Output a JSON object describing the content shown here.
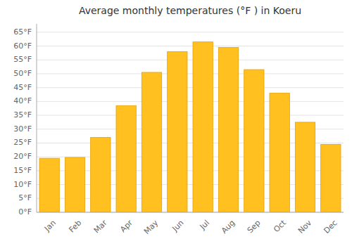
{
  "chart_data": {
    "type": "bar",
    "title": "Average monthly temperatures (°F ) in Koeru",
    "categories": [
      "Jan",
      "Feb",
      "Mar",
      "Apr",
      "May",
      "Jun",
      "Jul",
      "Aug",
      "Sep",
      "Oct",
      "Nov",
      "Dec"
    ],
    "values": [
      19.5,
      19.8,
      27.0,
      38.5,
      50.5,
      58.0,
      61.5,
      59.5,
      51.5,
      43.0,
      32.5,
      24.5
    ],
    "color": "#FFC020",
    "ylim": [
      0,
      68
    ],
    "yticks": [
      {
        "value": 0,
        "label": "0°F"
      },
      {
        "value": 5,
        "label": "5°F"
      },
      {
        "value": 10,
        "label": "10°F"
      },
      {
        "value": 15,
        "label": "15°F"
      },
      {
        "value": 20,
        "label": "20°F"
      },
      {
        "value": 25,
        "label": "25°F"
      },
      {
        "value": 30,
        "label": "30°F"
      },
      {
        "value": 35,
        "label": "35°F"
      },
      {
        "value": 40,
        "label": "40°F"
      },
      {
        "value": 45,
        "label": "45°F"
      },
      {
        "value": 50,
        "label": "50°F"
      },
      {
        "value": 55,
        "label": "55°F"
      },
      {
        "value": 60,
        "label": "60°F"
      },
      {
        "value": 65,
        "label": "65°F"
      }
    ],
    "grid": true
  }
}
